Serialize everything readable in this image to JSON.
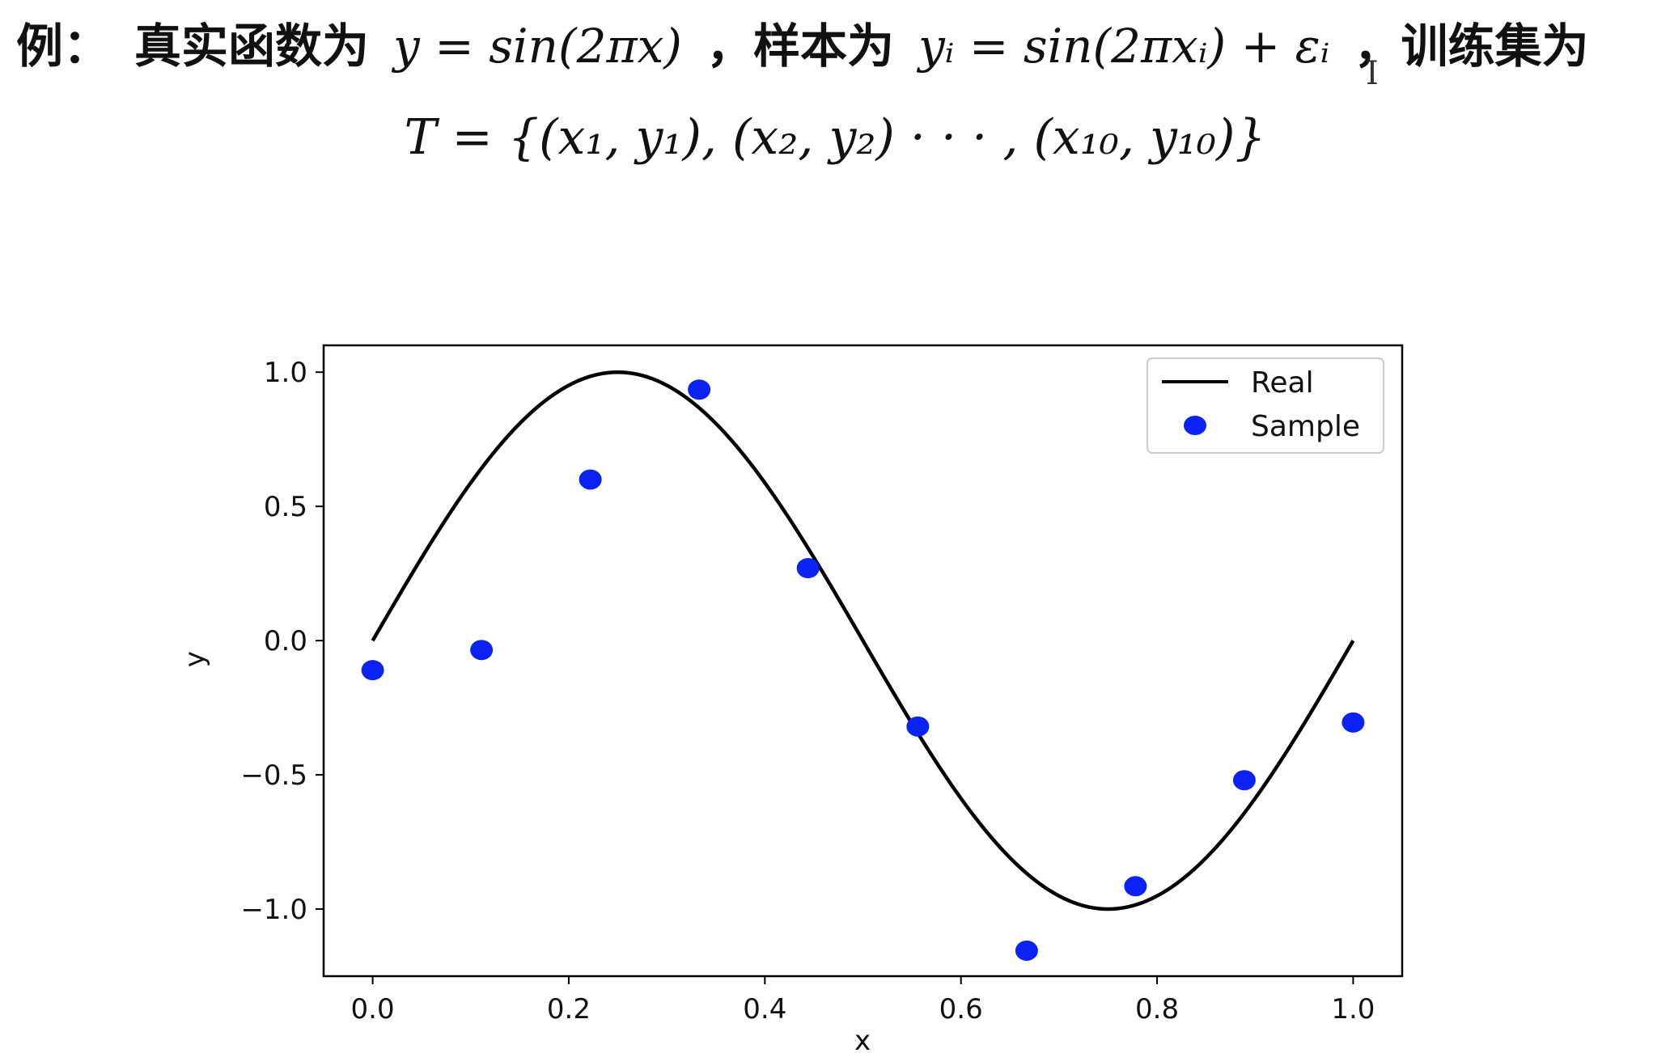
{
  "header": {
    "prefix": "例：",
    "real_fn_label": "真实函数为",
    "real_fn": "y = sin(2πx)",
    "sample_label": "，样本为",
    "sample_fn": "yᵢ = sin(2πxᵢ) + εᵢ",
    "train_label": "，训练集为",
    "train_set": "T = {(x₁, y₁), (x₂, y₂) · · · , (x₁₀, y₁₀)}"
  },
  "chart_data": {
    "type": "line",
    "title": "",
    "xlabel": "x",
    "ylabel": "y",
    "xlim": [
      -0.05,
      1.05
    ],
    "ylim": [
      -1.25,
      1.1
    ],
    "xticks": [
      0.0,
      0.2,
      0.4,
      0.6,
      0.8,
      1.0
    ],
    "xtick_labels": [
      "0.0",
      "0.2",
      "0.4",
      "0.6",
      "0.8",
      "1.0"
    ],
    "yticks": [
      1.0,
      0.5,
      0.0,
      -0.5,
      -1.0
    ],
    "ytick_labels": [
      "1.0",
      "0.5",
      "0.0",
      "−0.5",
      "−1.0"
    ],
    "grid": false,
    "legend_position": "top-right",
    "series": [
      {
        "name": "Real",
        "kind": "line",
        "color": "#000000",
        "function": "sin(2πx)",
        "x_range": [
          0.0,
          1.0
        ]
      },
      {
        "name": "Sample",
        "kind": "scatter",
        "color": "#0a22f2",
        "x": [
          0.0,
          0.111,
          0.222,
          0.333,
          0.444,
          0.556,
          0.667,
          0.778,
          0.889,
          1.0
        ],
        "y": [
          -0.11,
          -0.035,
          0.6,
          0.935,
          0.27,
          -0.32,
          -1.155,
          -0.915,
          -0.52,
          -0.305
        ]
      }
    ]
  }
}
